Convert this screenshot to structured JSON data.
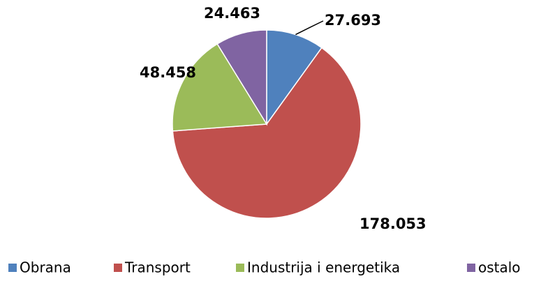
{
  "chart_data": {
    "type": "pie",
    "categories": [
      "Obrana",
      "Transport",
      "Industrija i energetika",
      "ostalo"
    ],
    "values": [
      27.693,
      178.053,
      48.458,
      24.463
    ],
    "colors": [
      "#4f81bd",
      "#c0504d",
      "#9bbb59",
      "#8064a2"
    ],
    "legend": "bottom"
  }
}
